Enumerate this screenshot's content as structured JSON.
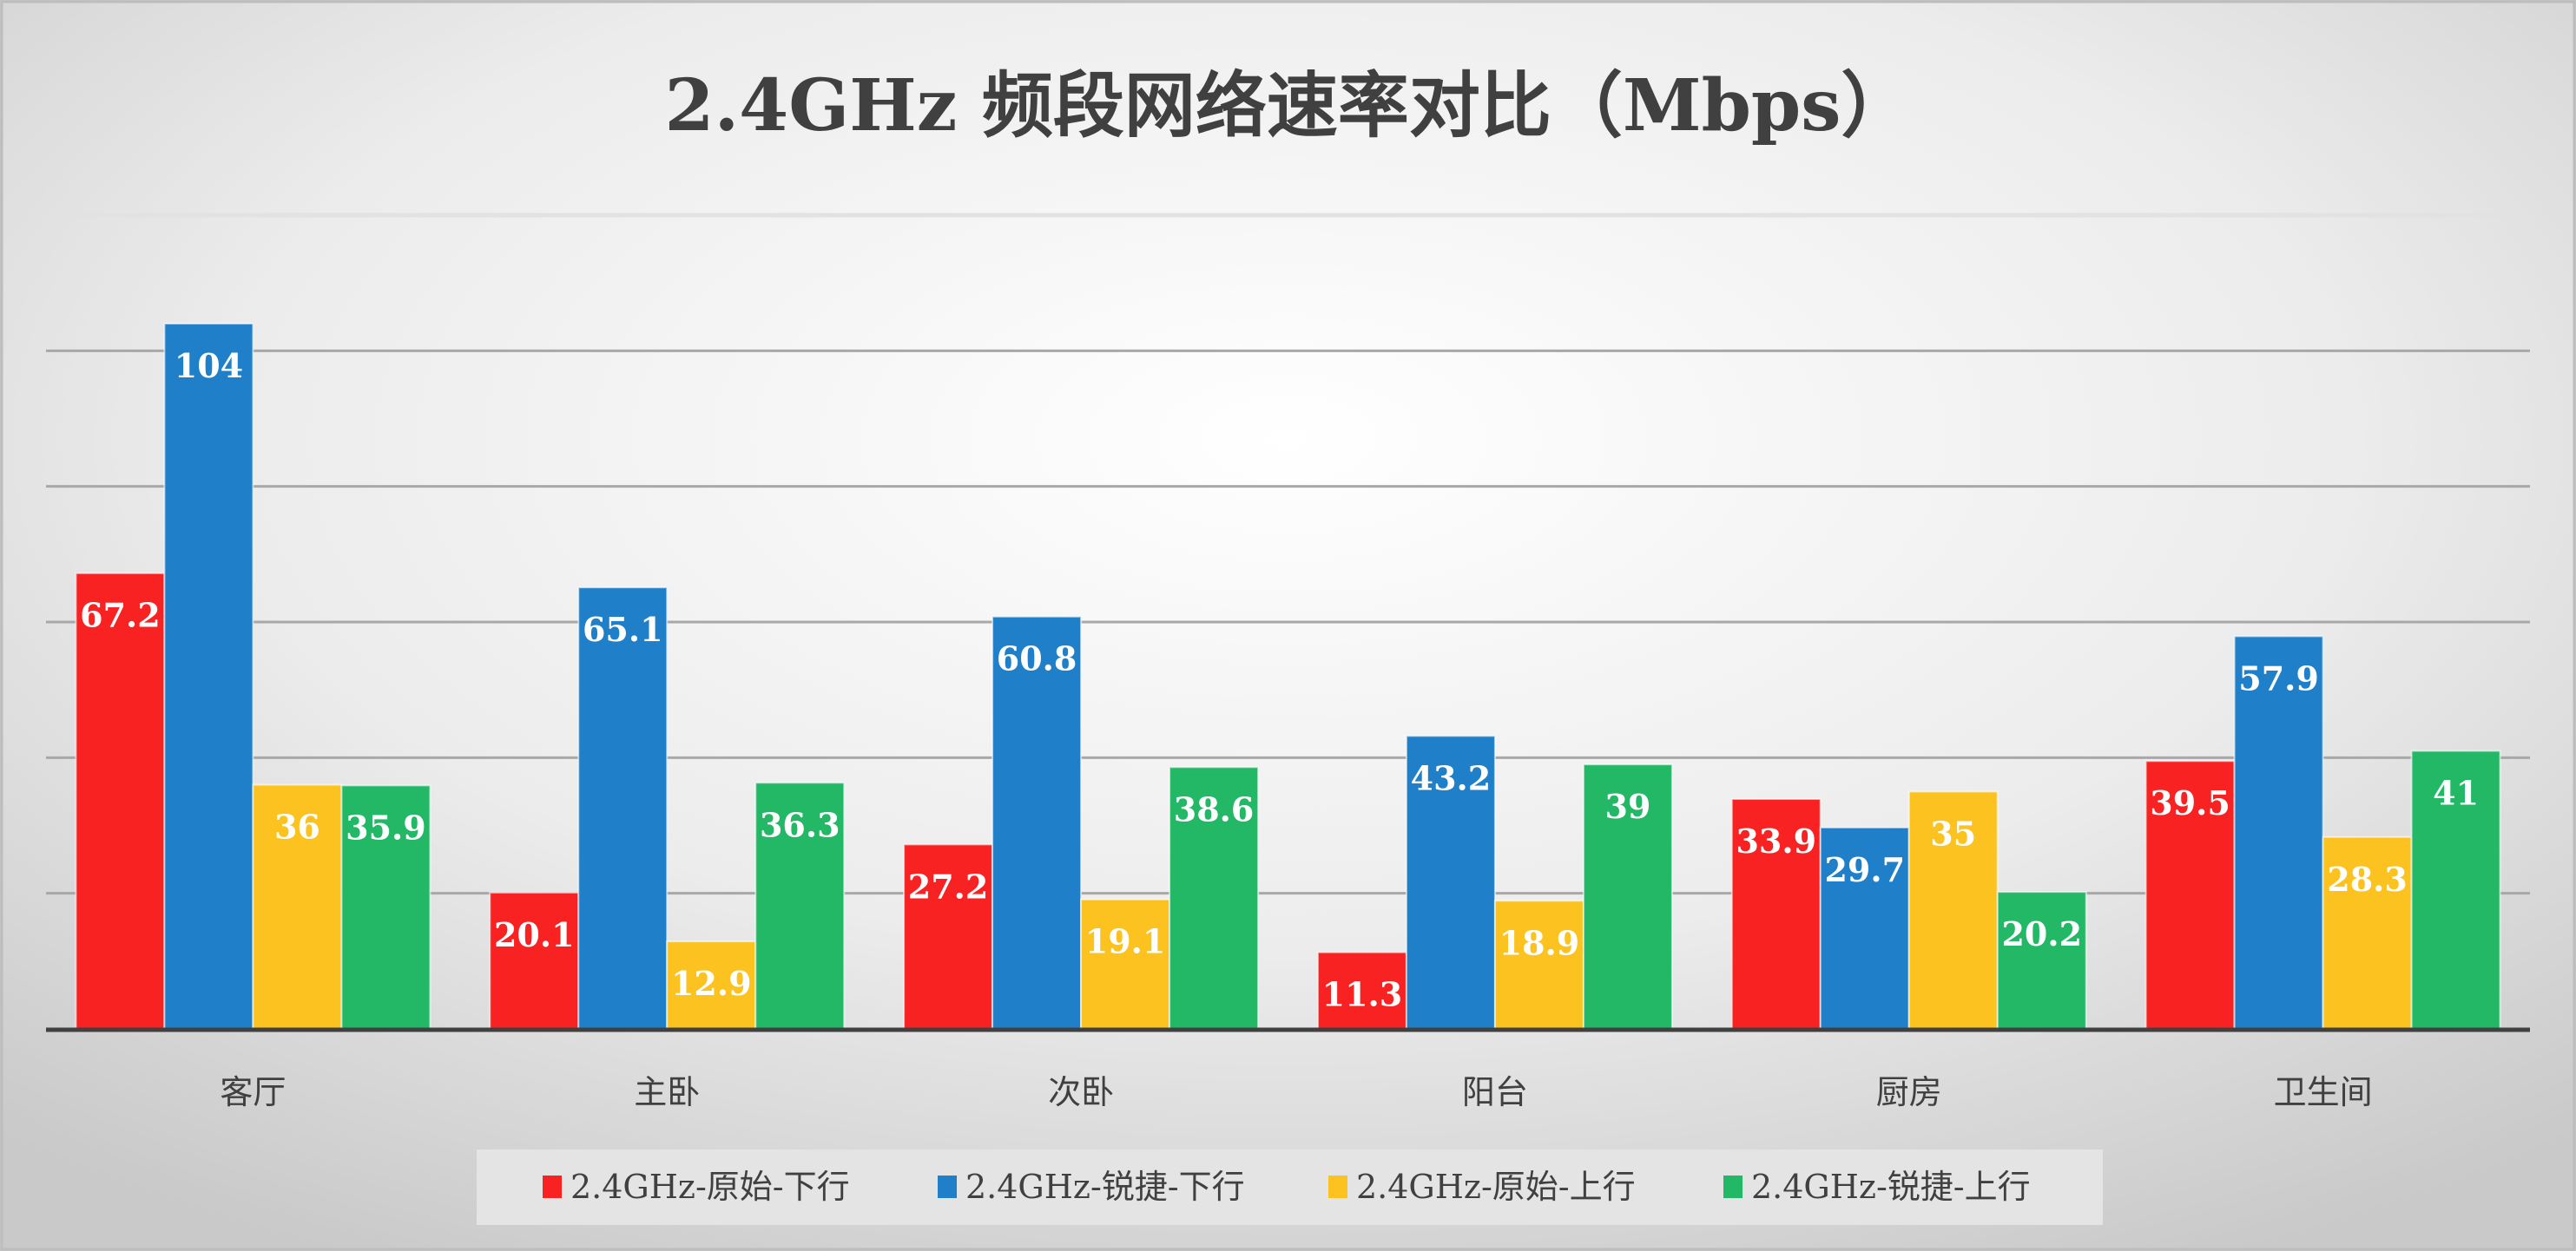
{
  "chart_data": {
    "type": "bar",
    "title": "2.4GHz 频段网络速率对比（Mbps）",
    "xlabel": "",
    "ylabel": "",
    "ylim": [
      0,
      120
    ],
    "grid": true,
    "gridlines": [
      20,
      40,
      60,
      80,
      100,
      120
    ],
    "legend_position": "bottom",
    "categories": [
      "客厅",
      "主卧",
      "次卧",
      "阳台",
      "厨房",
      "卫生间"
    ],
    "series": [
      {
        "name": "2.4GHz-原始-下行",
        "color": "#f82222",
        "values": [
          67.2,
          20.1,
          27.2,
          11.3,
          33.9,
          39.5
        ]
      },
      {
        "name": "2.4GHz-锐捷-下行",
        "color": "#1f7fc8",
        "values": [
          104,
          65.1,
          60.8,
          43.2,
          29.7,
          57.9
        ]
      },
      {
        "name": "2.4GHz-原始-上行",
        "color": "#fbc220",
        "values": [
          36,
          12.9,
          19.1,
          18.9,
          35,
          28.3
        ]
      },
      {
        "name": "2.4GHz-锐捷-上行",
        "color": "#22b866",
        "values": [
          35.9,
          36.3,
          38.6,
          39,
          20.2,
          41
        ]
      }
    ]
  }
}
